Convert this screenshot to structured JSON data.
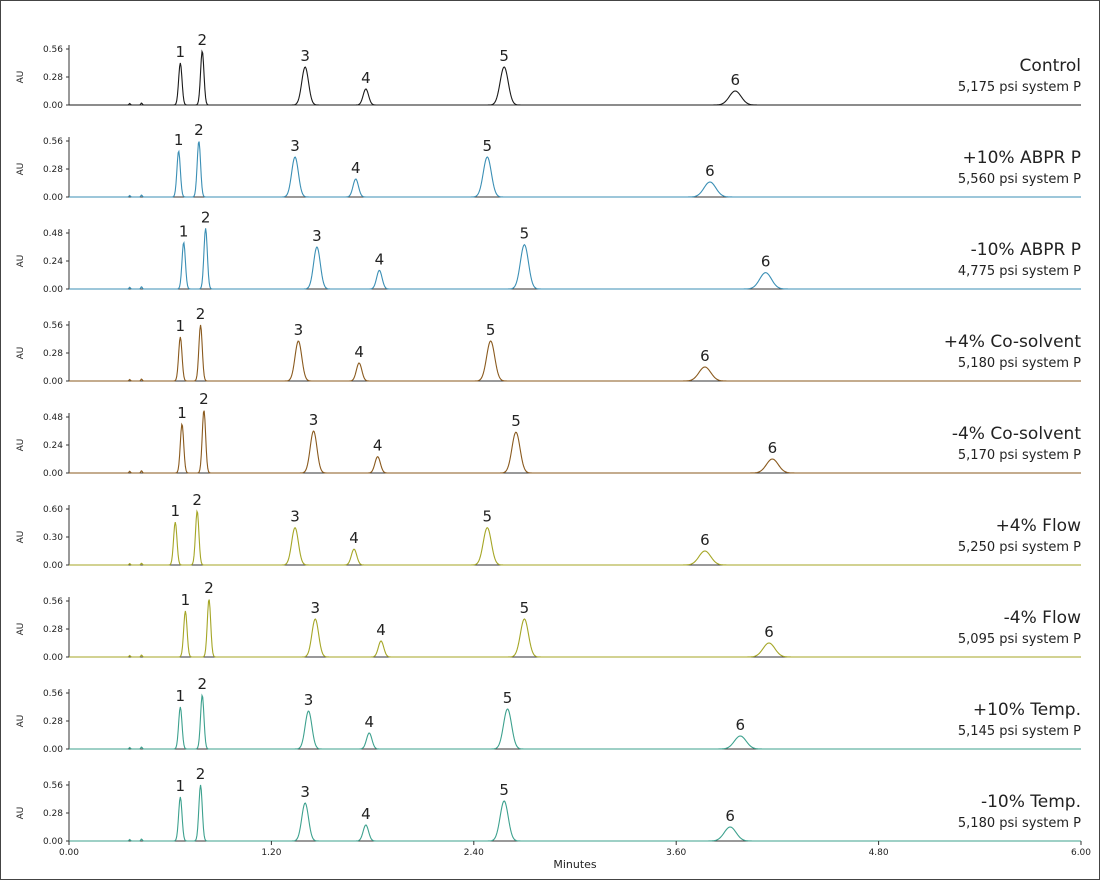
{
  "chart_data": {
    "type": "line",
    "xlabel": "Minutes",
    "x_ticks": [
      "0.00",
      "1.20",
      "2.40",
      "3.60",
      "4.80",
      "6.00"
    ],
    "xlim": [
      0,
      6
    ],
    "grid": false,
    "panels": [
      {
        "title": "Control",
        "subtitle": "5,175 psi system P",
        "color": "#1a1a1a",
        "ylabel": "AU",
        "y_ticks": [
          "0.00",
          "0.28",
          "0.56"
        ],
        "ylim": [
          0,
          0.56
        ],
        "peaks": [
          {
            "label": "1",
            "time": 0.66,
            "height": 0.42,
            "width": 0.01
          },
          {
            "label": "2",
            "time": 0.79,
            "height": 0.54,
            "width": 0.01
          },
          {
            "label": "3",
            "time": 1.4,
            "height": 0.38,
            "width": 0.02
          },
          {
            "label": "4",
            "time": 1.76,
            "height": 0.16,
            "width": 0.016
          },
          {
            "label": "5",
            "time": 2.58,
            "height": 0.38,
            "width": 0.024
          },
          {
            "label": "6",
            "time": 3.95,
            "height": 0.14,
            "width": 0.035
          }
        ]
      },
      {
        "title": "+10% ABPR P",
        "subtitle": "5,560 psi system P",
        "color": "#3b8fb5",
        "ylabel": "AU",
        "y_ticks": [
          "0.00",
          "0.28",
          "0.56"
        ],
        "ylim": [
          0,
          0.56
        ],
        "peaks": [
          {
            "label": "1",
            "time": 0.65,
            "height": 0.46,
            "width": 0.01
          },
          {
            "label": "2",
            "time": 0.77,
            "height": 0.56,
            "width": 0.01
          },
          {
            "label": "3",
            "time": 1.34,
            "height": 0.4,
            "width": 0.02
          },
          {
            "label": "4",
            "time": 1.7,
            "height": 0.18,
            "width": 0.016
          },
          {
            "label": "5",
            "time": 2.48,
            "height": 0.4,
            "width": 0.024
          },
          {
            "label": "6",
            "time": 3.8,
            "height": 0.15,
            "width": 0.035
          }
        ]
      },
      {
        "title": "-10% ABPR P",
        "subtitle": "4,775 psi system P",
        "color": "#3b8fb5",
        "ylabel": "AU",
        "y_ticks": [
          "0.00",
          "0.24",
          "0.48"
        ],
        "ylim": [
          0,
          0.48
        ],
        "peaks": [
          {
            "label": "1",
            "time": 0.68,
            "height": 0.4,
            "width": 0.01
          },
          {
            "label": "2",
            "time": 0.81,
            "height": 0.52,
            "width": 0.01
          },
          {
            "label": "3",
            "time": 1.47,
            "height": 0.36,
            "width": 0.02
          },
          {
            "label": "4",
            "time": 1.84,
            "height": 0.16,
            "width": 0.016
          },
          {
            "label": "5",
            "time": 2.7,
            "height": 0.38,
            "width": 0.024
          },
          {
            "label": "6",
            "time": 4.13,
            "height": 0.14,
            "width": 0.035
          }
        ]
      },
      {
        "title": "+4% Co-solvent",
        "subtitle": "5,180 psi system P",
        "color": "#8a5a1e",
        "ylabel": "AU",
        "y_ticks": [
          "0.00",
          "0.28",
          "0.56"
        ],
        "ylim": [
          0,
          0.56
        ],
        "peaks": [
          {
            "label": "1",
            "time": 0.66,
            "height": 0.44,
            "width": 0.01
          },
          {
            "label": "2",
            "time": 0.78,
            "height": 0.56,
            "width": 0.01
          },
          {
            "label": "3",
            "time": 1.36,
            "height": 0.4,
            "width": 0.02
          },
          {
            "label": "4",
            "time": 1.72,
            "height": 0.18,
            "width": 0.016
          },
          {
            "label": "5",
            "time": 2.5,
            "height": 0.4,
            "width": 0.024
          },
          {
            "label": "6",
            "time": 3.77,
            "height": 0.14,
            "width": 0.035
          }
        ]
      },
      {
        "title": "-4% Co-solvent",
        "subtitle": "5,170 psi system P",
        "color": "#8a5a1e",
        "ylabel": "AU",
        "y_ticks": [
          "0.00",
          "0.24",
          "0.48"
        ],
        "ylim": [
          0,
          0.48
        ],
        "peaks": [
          {
            "label": "1",
            "time": 0.67,
            "height": 0.42,
            "width": 0.01
          },
          {
            "label": "2",
            "time": 0.8,
            "height": 0.54,
            "width": 0.01
          },
          {
            "label": "3",
            "time": 1.45,
            "height": 0.36,
            "width": 0.02
          },
          {
            "label": "4",
            "time": 1.83,
            "height": 0.14,
            "width": 0.016
          },
          {
            "label": "5",
            "time": 2.65,
            "height": 0.35,
            "width": 0.024
          },
          {
            "label": "6",
            "time": 4.17,
            "height": 0.12,
            "width": 0.035
          }
        ]
      },
      {
        "title": "+4% Flow",
        "subtitle": "5,250 psi system P",
        "color": "#a5a626",
        "ylabel": "AU",
        "y_ticks": [
          "0.00",
          "0.30",
          "0.60"
        ],
        "ylim": [
          0,
          0.6
        ],
        "peaks": [
          {
            "label": "1",
            "time": 0.63,
            "height": 0.46,
            "width": 0.01
          },
          {
            "label": "2",
            "time": 0.76,
            "height": 0.58,
            "width": 0.01
          },
          {
            "label": "3",
            "time": 1.34,
            "height": 0.4,
            "width": 0.02
          },
          {
            "label": "4",
            "time": 1.69,
            "height": 0.17,
            "width": 0.016
          },
          {
            "label": "5",
            "time": 2.48,
            "height": 0.4,
            "width": 0.024
          },
          {
            "label": "6",
            "time": 3.77,
            "height": 0.15,
            "width": 0.035
          }
        ]
      },
      {
        "title": "-4% Flow",
        "subtitle": "5,095 psi system P",
        "color": "#a5a626",
        "ylabel": "AU",
        "y_ticks": [
          "0.00",
          "0.28",
          "0.56"
        ],
        "ylim": [
          0,
          0.56
        ],
        "peaks": [
          {
            "label": "1",
            "time": 0.69,
            "height": 0.46,
            "width": 0.01
          },
          {
            "label": "2",
            "time": 0.83,
            "height": 0.58,
            "width": 0.01
          },
          {
            "label": "3",
            "time": 1.46,
            "height": 0.38,
            "width": 0.02
          },
          {
            "label": "4",
            "time": 1.85,
            "height": 0.16,
            "width": 0.016
          },
          {
            "label": "5",
            "time": 2.7,
            "height": 0.38,
            "width": 0.024
          },
          {
            "label": "6",
            "time": 4.15,
            "height": 0.14,
            "width": 0.035
          }
        ]
      },
      {
        "title": "+10% Temp.",
        "subtitle": "5,145 psi system P",
        "color": "#3da18e",
        "ylabel": "AU",
        "y_ticks": [
          "0.00",
          "0.28",
          "0.56"
        ],
        "ylim": [
          0,
          0.56
        ],
        "peaks": [
          {
            "label": "1",
            "time": 0.66,
            "height": 0.42,
            "width": 0.01
          },
          {
            "label": "2",
            "time": 0.79,
            "height": 0.54,
            "width": 0.01
          },
          {
            "label": "3",
            "time": 1.42,
            "height": 0.38,
            "width": 0.02
          },
          {
            "label": "4",
            "time": 1.78,
            "height": 0.16,
            "width": 0.016
          },
          {
            "label": "5",
            "time": 2.6,
            "height": 0.4,
            "width": 0.024
          },
          {
            "label": "6",
            "time": 3.98,
            "height": 0.13,
            "width": 0.035
          }
        ]
      },
      {
        "title": "-10% Temp.",
        "subtitle": "5,180 psi system P",
        "color": "#3da18e",
        "ylabel": "AU",
        "y_ticks": [
          "0.00",
          "0.28",
          "0.56"
        ],
        "ylim": [
          0,
          0.56
        ],
        "peaks": [
          {
            "label": "1",
            "time": 0.66,
            "height": 0.44,
            "width": 0.01
          },
          {
            "label": "2",
            "time": 0.78,
            "height": 0.56,
            "width": 0.01
          },
          {
            "label": "3",
            "time": 1.4,
            "height": 0.38,
            "width": 0.02
          },
          {
            "label": "4",
            "time": 1.76,
            "height": 0.16,
            "width": 0.016
          },
          {
            "label": "5",
            "time": 2.58,
            "height": 0.4,
            "width": 0.024
          },
          {
            "label": "6",
            "time": 3.92,
            "height": 0.14,
            "width": 0.035
          }
        ]
      }
    ]
  }
}
